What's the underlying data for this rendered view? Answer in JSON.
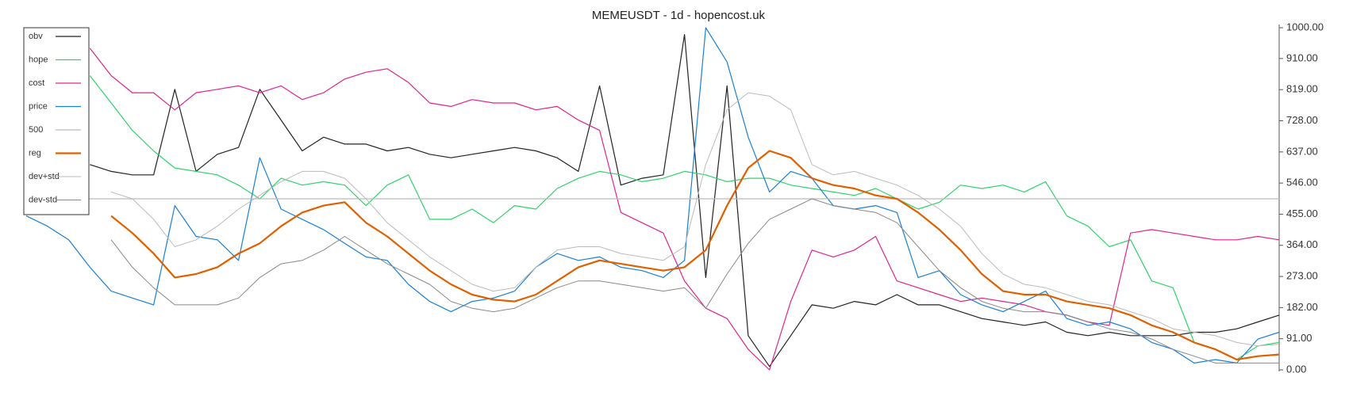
{
  "chart_data": {
    "type": "line",
    "title": "MEMEUSDT - 1d - hopencost.uk",
    "ylim": [
      0,
      1000
    ],
    "yticks": [
      {
        "value": 0,
        "label": "0.00"
      },
      {
        "value": 91,
        "label": "91.00"
      },
      {
        "value": 182,
        "label": "182.00"
      },
      {
        "value": 273,
        "label": "273.00"
      },
      {
        "value": 364,
        "label": "364.00"
      },
      {
        "value": 455,
        "label": "455.00"
      },
      {
        "value": 546,
        "label": "546.00"
      },
      {
        "value": 637,
        "label": "637.00"
      },
      {
        "value": 728,
        "label": "728.00"
      },
      {
        "value": 819,
        "label": "819.00"
      },
      {
        "value": 910,
        "label": "910.00"
      },
      {
        "value": 1000,
        "label": "1000.00"
      }
    ],
    "y_axis_side": "right",
    "legend": "upper left",
    "series": [
      {
        "name": "obv",
        "color": "#222222",
        "width": 1.2,
        "values": [
          null,
          null,
          null,
          600,
          580,
          570,
          570,
          820,
          580,
          630,
          650,
          820,
          730,
          640,
          680,
          660,
          660,
          640,
          650,
          630,
          620,
          630,
          640,
          650,
          640,
          620,
          580,
          830,
          540,
          560,
          570,
          980,
          270,
          830,
          100,
          10,
          100,
          190,
          180,
          200,
          190,
          220,
          190,
          190,
          170,
          150,
          140,
          130,
          140,
          110,
          100,
          110,
          100,
          100,
          100,
          110,
          110,
          120,
          140,
          160
        ]
      },
      {
        "name": "hope",
        "color": "#2fd36a",
        "width": 1.2,
        "values": [
          null,
          null,
          null,
          860,
          780,
          700,
          640,
          590,
          580,
          570,
          540,
          500,
          560,
          540,
          550,
          540,
          480,
          540,
          570,
          440,
          440,
          470,
          430,
          480,
          470,
          530,
          560,
          580,
          570,
          550,
          560,
          580,
          570,
          550,
          560,
          560,
          540,
          530,
          520,
          510,
          530,
          500,
          470,
          490,
          540,
          530,
          540,
          520,
          550,
          450,
          420,
          360,
          380,
          260,
          240,
          80,
          60,
          30,
          70,
          80
        ]
      },
      {
        "name": "cost",
        "color": "#e0248c",
        "width": 1.2,
        "values": [
          null,
          null,
          null,
          940,
          860,
          810,
          810,
          760,
          810,
          820,
          830,
          810,
          830,
          790,
          810,
          850,
          870,
          880,
          840,
          780,
          770,
          790,
          780,
          780,
          760,
          770,
          730,
          700,
          460,
          430,
          400,
          260,
          180,
          150,
          60,
          0,
          200,
          350,
          330,
          350,
          390,
          260,
          240,
          220,
          200,
          210,
          200,
          190,
          170,
          160,
          140,
          130,
          400,
          410,
          400,
          390,
          380,
          380,
          390,
          380
        ]
      },
      {
        "name": "price",
        "color": "#1a7fd6",
        "width": 1.2,
        "values": [
          450,
          420,
          380,
          300,
          230,
          210,
          190,
          480,
          390,
          380,
          320,
          620,
          470,
          440,
          410,
          370,
          330,
          320,
          250,
          200,
          170,
          200,
          210,
          230,
          300,
          340,
          320,
          330,
          300,
          290,
          270,
          320,
          1000,
          900,
          680,
          520,
          580,
          560,
          480,
          470,
          480,
          460,
          270,
          290,
          220,
          190,
          170,
          200,
          230,
          150,
          130,
          140,
          120,
          80,
          60,
          20,
          30,
          20,
          90,
          110
        ]
      },
      {
        "name": "500",
        "color": "#bbbbbb",
        "width": 1.2,
        "values": [
          500,
          500,
          500,
          500,
          500,
          500,
          500,
          500,
          500,
          500,
          500,
          500,
          500,
          500,
          500,
          500,
          500,
          500,
          500,
          500,
          500,
          500,
          500,
          500,
          500,
          500,
          500,
          500,
          500,
          500,
          500,
          500,
          500,
          500,
          500,
          500,
          500,
          500,
          500,
          500,
          500,
          500,
          500,
          500,
          500,
          500,
          500,
          500,
          500,
          500,
          500,
          500,
          500,
          500,
          500,
          500,
          500,
          500,
          500,
          500
        ]
      },
      {
        "name": "reg",
        "color": "#e06000",
        "width": 2.2,
        "values": [
          null,
          null,
          null,
          null,
          450,
          400,
          340,
          270,
          280,
          300,
          340,
          370,
          420,
          460,
          480,
          490,
          430,
          390,
          340,
          290,
          250,
          220,
          205,
          200,
          220,
          260,
          300,
          320,
          310,
          300,
          290,
          300,
          350,
          480,
          590,
          640,
          620,
          560,
          540,
          530,
          510,
          500,
          460,
          410,
          350,
          280,
          230,
          220,
          220,
          200,
          190,
          180,
          160,
          130,
          110,
          80,
          60,
          30,
          40,
          45
        ]
      },
      {
        "name": "dev+std",
        "color": "#bbbbbb",
        "width": 1,
        "values": [
          null,
          null,
          null,
          null,
          520,
          500,
          440,
          360,
          380,
          420,
          470,
          510,
          550,
          580,
          580,
          560,
          500,
          430,
          380,
          330,
          290,
          250,
          230,
          240,
          300,
          350,
          360,
          360,
          340,
          330,
          320,
          360,
          600,
          760,
          810,
          800,
          760,
          600,
          570,
          580,
          560,
          540,
          510,
          470,
          420,
          340,
          280,
          250,
          240,
          220,
          200,
          190,
          170,
          150,
          120,
          110,
          100,
          80,
          70,
          75
        ]
      },
      {
        "name": "dev-std",
        "color": "#888888",
        "width": 1,
        "values": [
          null,
          null,
          null,
          null,
          380,
          300,
          240,
          190,
          190,
          190,
          210,
          270,
          310,
          320,
          350,
          390,
          350,
          310,
          280,
          250,
          200,
          180,
          170,
          180,
          210,
          240,
          260,
          260,
          250,
          240,
          230,
          240,
          180,
          280,
          370,
          440,
          470,
          500,
          480,
          470,
          460,
          430,
          360,
          290,
          240,
          200,
          180,
          170,
          170,
          160,
          140,
          120,
          110,
          90,
          60,
          40,
          20,
          20,
          20,
          20
        ]
      }
    ]
  }
}
